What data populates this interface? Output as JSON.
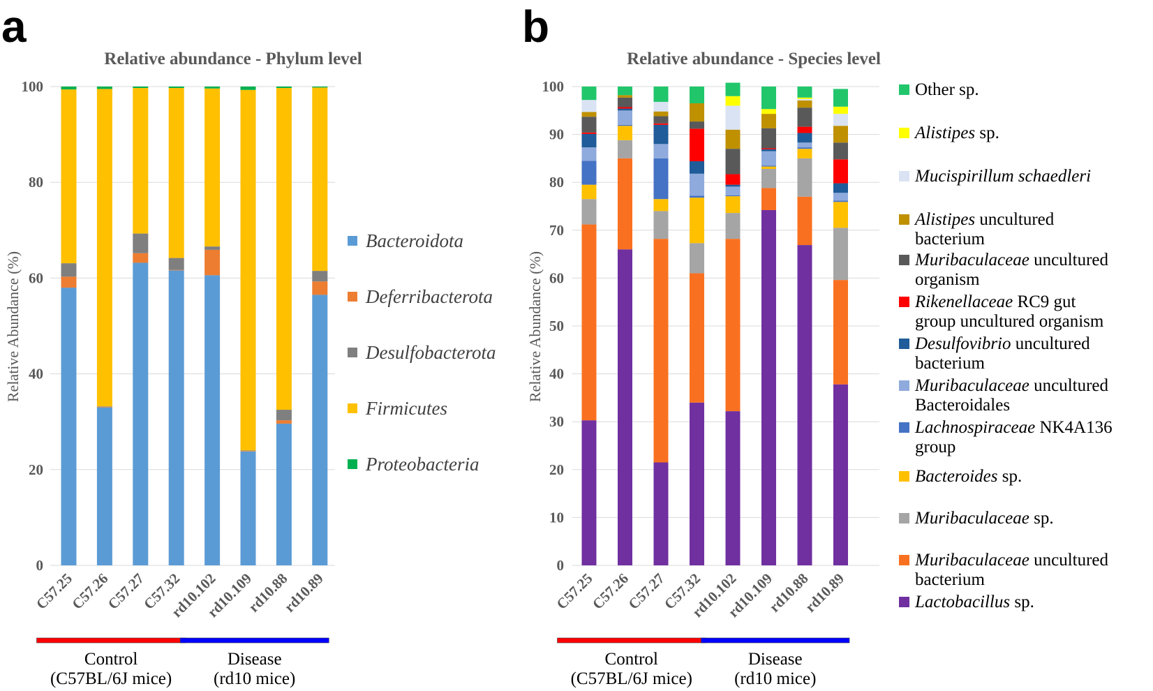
{
  "panels": {
    "a": "a",
    "b": "b"
  },
  "chart_data": [
    {
      "type": "bar",
      "stacked": true,
      "title": "Relative abundance - Phylum level",
      "ylabel": "Relative Abundance (%)",
      "ylim": [
        0,
        100
      ],
      "yticks": [
        0,
        20,
        40,
        60,
        80,
        100
      ],
      "categories": [
        "C57.25",
        "C57.26",
        "C57.27",
        "C57.32",
        "rd10.102",
        "rd10.109",
        "rd10.88",
        "rd10.89"
      ],
      "series": [
        {
          "name": "Bacteroidota",
          "color": "#5b9bd5",
          "values": [
            58.0,
            33.0,
            63.2,
            61.6,
            60.6,
            23.8,
            29.6,
            56.5
          ]
        },
        {
          "name": "Deferribacterota",
          "color": "#ed7d31",
          "values": [
            2.3,
            0.1,
            2.0,
            0.1,
            5.3,
            0.1,
            0.7,
            2.8
          ]
        },
        {
          "name": "Desulfobacterota",
          "color": "#7f7f7f",
          "values": [
            2.8,
            0.1,
            4.1,
            2.5,
            0.7,
            0.1,
            2.2,
            2.2
          ]
        },
        {
          "name": "Firmicutes",
          "color": "#ffc000",
          "values": [
            36.3,
            66.3,
            30.4,
            35.5,
            33.0,
            75.3,
            67.2,
            38.3
          ]
        },
        {
          "name": "Proteobacteria",
          "color": "#00b050",
          "values": [
            0.6,
            0.5,
            0.3,
            0.3,
            0.4,
            0.7,
            0.3,
            0.2
          ]
        }
      ],
      "groups": [
        {
          "line1": "Control",
          "line2": "(C57BL/6J mice)",
          "color": "#ff0000",
          "from": 0,
          "to": 3
        },
        {
          "line1": "Disease",
          "line2": "(rd10 mice)",
          "color": "#0000ff",
          "from": 4,
          "to": 7
        }
      ]
    },
    {
      "type": "bar",
      "stacked": true,
      "title": "Relative abundance - Species level",
      "ylabel": "Relative Abundance (%)",
      "ylim": [
        0,
        100
      ],
      "yticks": [
        0,
        10,
        20,
        30,
        40,
        50,
        60,
        70,
        80,
        90,
        100
      ],
      "categories": [
        "C57.25",
        "C57.26",
        "C57.27",
        "C57.32",
        "rd10.102",
        "rd10.109",
        "rd10.88",
        "rd10.89"
      ],
      "series": [
        {
          "name": "Lactobacillus sp.",
          "italic": "Lactobacillus",
          "rest": " sp.",
          "color": "#7030a0",
          "values": [
            30.3,
            66.0,
            21.5,
            34.0,
            32.2,
            74.2,
            66.9,
            37.8
          ]
        },
        {
          "name": "Muribaculaceae uncultured bacterium",
          "italic": "Muribaculaceae",
          "rest": " uncultured",
          "line2": "bacterium",
          "color": "#f97120",
          "values": [
            40.9,
            19.0,
            46.7,
            27.0,
            36.0,
            4.6,
            10.1,
            21.8
          ]
        },
        {
          "name": "Muribaculaceae sp.",
          "italic": "Muribaculaceae",
          "rest": " sp.",
          "color": "#a5a5a5",
          "values": [
            5.3,
            3.8,
            5.8,
            6.3,
            5.4,
            4.0,
            8.0,
            10.9
          ]
        },
        {
          "name": "Bacteroides sp.",
          "italic": "Bacteroides",
          "rest": " sp.",
          "color": "#ffc000",
          "values": [
            3.0,
            3.0,
            2.5,
            9.5,
            3.5,
            0.5,
            2.0,
            5.4
          ]
        },
        {
          "name": "Lachnospiraceae NK4A136 group",
          "italic": "Lachnospiraceae",
          "rest": " NK4A136",
          "line2": "group",
          "color": "#4472c4",
          "values": [
            5.0,
            0.2,
            8.5,
            0.4,
            0.2,
            0.2,
            0.3,
            0.3
          ]
        },
        {
          "name": "Muribaculaceae uncultured Bacteroidales",
          "italic": "Muribaculaceae",
          "rest": " uncultured",
          "line2": "Bacteroidales",
          "color": "#8faadc",
          "values": [
            2.8,
            3.0,
            3.0,
            4.6,
            1.8,
            3.0,
            1.0,
            1.6
          ]
        },
        {
          "name": "Desulfovibrio uncultured bacterium",
          "italic": "Desulfovibrio",
          "rest": " uncultured",
          "line2": "bacterium",
          "color": "#1f5c99",
          "values": [
            2.8,
            0.4,
            4.0,
            2.6,
            0.4,
            0.4,
            2.0,
            2.0
          ]
        },
        {
          "name": "Rikenellaceae RC9 gut group uncultured organism",
          "italic": "Rikenellaceae",
          "rest": " RC9 gut",
          "line2": "group uncultured organism",
          "color": "#ff0000",
          "values": [
            0.3,
            0.3,
            0.3,
            6.8,
            2.2,
            0.2,
            1.3,
            5.0
          ]
        },
        {
          "name": "Muribaculaceae uncultured organism",
          "italic": "Muribaculaceae",
          "rest": " uncultured",
          "line2": "organism",
          "color": "#595959",
          "values": [
            3.3,
            2.0,
            1.5,
            1.5,
            5.3,
            4.2,
            4.0,
            3.5
          ]
        },
        {
          "name": "Alistipes uncultured bacterium",
          "italic": "Alistipes",
          "rest": " uncultured",
          "line2": "bacterium",
          "color": "#bf9000",
          "values": [
            1.0,
            0.5,
            1.0,
            3.8,
            4.0,
            3.0,
            1.5,
            3.5
          ]
        },
        {
          "name": "Mucispirillum schaedleri",
          "italic": "Mucispirillum schaedleri",
          "rest": "",
          "color": "#dae3f3",
          "values": [
            2.5,
            0.0,
            2.0,
            0.0,
            5.0,
            0.0,
            0.3,
            2.5
          ]
        },
        {
          "name": "Alistipes sp.",
          "italic": "Alistipes",
          "rest": " sp.",
          "color": "#ffff00",
          "values": [
            0.0,
            0.0,
            0.0,
            0.0,
            2.0,
            1.0,
            0.3,
            1.5
          ]
        },
        {
          "name": "Other sp.",
          "italic": "",
          "rest": "Other sp.",
          "color": "#21c66b",
          "values": [
            2.8,
            1.8,
            3.2,
            3.5,
            2.8,
            4.7,
            2.3,
            3.7
          ]
        }
      ],
      "groups": [
        {
          "line1": "Control",
          "line2": "(C57BL/6J mice)",
          "color": "#ff0000",
          "from": 0,
          "to": 3
        },
        {
          "line1": "Disease",
          "line2": "(rd10 mice)",
          "color": "#0000ff",
          "from": 4,
          "to": 7
        }
      ]
    }
  ]
}
